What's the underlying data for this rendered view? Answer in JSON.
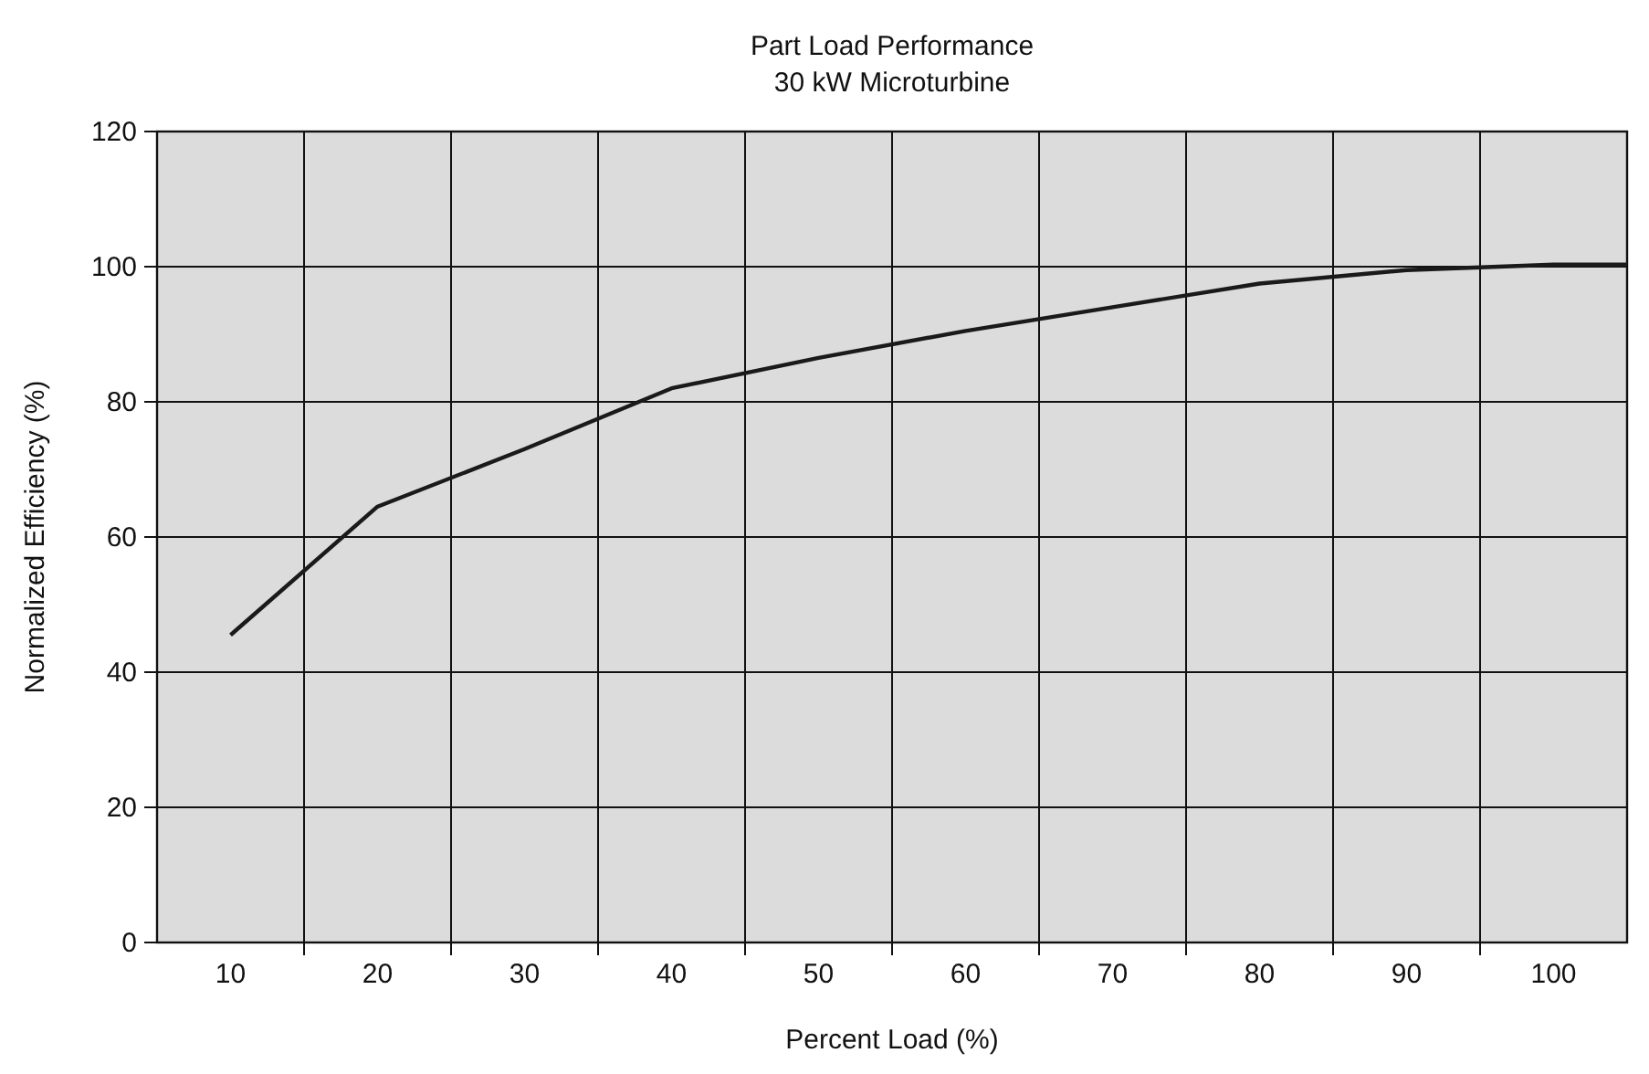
{
  "chart_data": {
    "type": "line",
    "title": "Part Load Performance",
    "subtitle": "30 kW Microturbine",
    "xlabel": "Percent Load (%)",
    "ylabel": "Normalized Efficiency (%)",
    "x": [
      10,
      20,
      30,
      40,
      50,
      60,
      70,
      80,
      90,
      100,
      105
    ],
    "series": [
      {
        "color": "#1a1a1a",
        "values": [
          45.5,
          64.5,
          73,
          82,
          86.5,
          90.5,
          94,
          97.5,
          99.5,
          100.3,
          100.3
        ]
      }
    ],
    "xlim": [
      5,
      105
    ],
    "xticks": [
      10,
      {
        "value": 15,
        "label": null
      },
      20,
      {
        "value": 25,
        "label": null
      },
      30,
      {
        "value": 35,
        "label": null
      },
      40,
      {
        "value": 45,
        "label": null
      },
      50,
      {
        "value": 55,
        "label": null
      },
      60,
      {
        "value": 65,
        "label": null
      },
      70,
      {
        "value": 75,
        "label": null
      },
      80,
      {
        "value": 85,
        "label": null
      },
      90,
      {
        "value": 95,
        "label": null
      },
      100
    ],
    "ylim": [
      0,
      120
    ],
    "yticks": [
      0,
      20,
      40,
      60,
      80,
      100,
      120
    ],
    "grid": true,
    "marker": "none",
    "line_style": "solid"
  }
}
